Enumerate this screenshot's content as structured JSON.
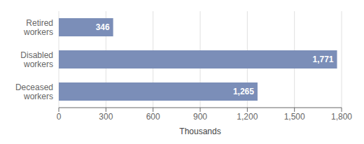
{
  "chart_data": {
    "type": "bar",
    "orientation": "horizontal",
    "categories": [
      "Retired\nworkers",
      "Disabled\nworkers",
      "Deceased\nworkers"
    ],
    "values": [
      346,
      1771,
      1265
    ],
    "value_labels": [
      "346",
      "1,771",
      "1,265"
    ],
    "data_labels": true,
    "color": "#7b8eb8",
    "xlabel": "Thousands",
    "xlim": [
      0,
      1800
    ],
    "xticks": [
      0,
      300,
      600,
      {
        "value": 900,
        "label": "900"
      },
      {
        "value": 1200,
        "label": "1,200"
      },
      {
        "value": 1500,
        "label": "1,500"
      },
      {
        "value": 1800,
        "label": "1,800"
      }
    ],
    "grid": true
  }
}
